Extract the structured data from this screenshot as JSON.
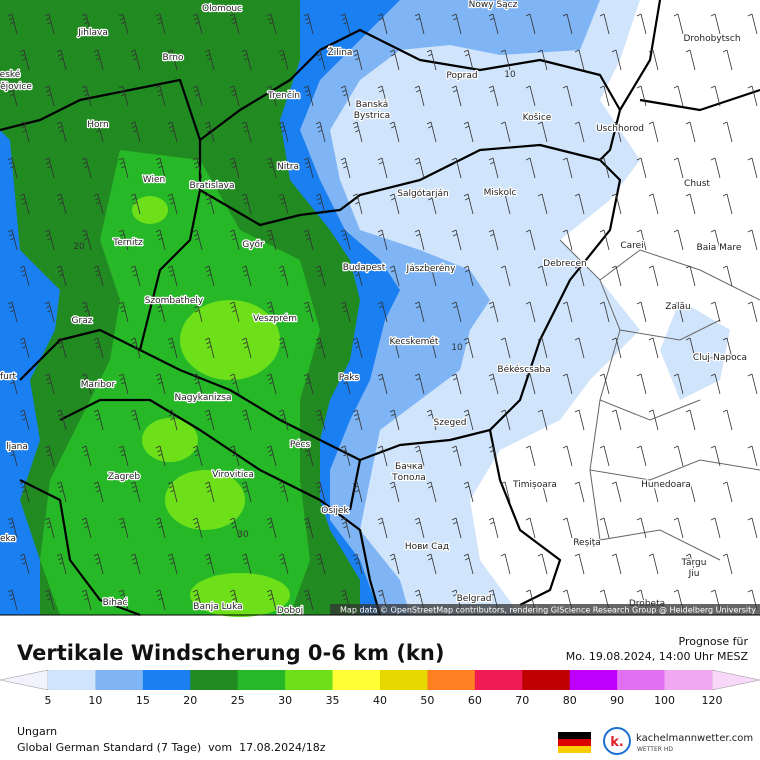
{
  "header": {
    "title": "Vertikale Windscherung 0-6 km (kn)",
    "forecast_label": "Prognose für",
    "forecast_time": "Mo. 19.08.2024, 14:00 Uhr MESZ"
  },
  "legend": {
    "ticks": [
      5,
      10,
      15,
      20,
      25,
      30,
      35,
      40,
      50,
      60,
      70,
      80,
      90,
      100,
      120
    ],
    "colors": [
      "#d0e4fb",
      "#7fb5f5",
      "#1a7ff0",
      "#218a21",
      "#27b827",
      "#6de01a",
      "#ffff33",
      "#e6d800",
      "#ff8020",
      "#f01a55",
      "#c00000",
      "#c000ff",
      "#e070f0",
      "#f0a8f0"
    ],
    "below_color": "#f2f2ff",
    "above_color": "#f8d8f8"
  },
  "map": {
    "cities": [
      "Olomouc",
      "Nowy Sącz",
      "Jihlava",
      "Brno",
      "Žilina",
      "Poprad",
      "Drohobytsch",
      "eské",
      "ějovice",
      "Trenčín",
      "Banská",
      "Bystrica",
      "Košice",
      "Uschhorod",
      "Horn",
      "Nitra",
      "Wien",
      "Bratislava",
      "Chust",
      "Salgótarján",
      "Miskolc",
      "Ternitz",
      "Győr",
      "Budapest",
      "Jászberény",
      "Debrecen",
      "Carei",
      "Baia Mare",
      "Szombathely",
      "Graz",
      "Veszprém",
      "Zalău",
      "Kecskemét",
      "Cluj-Napoca",
      "furt",
      "Maribor",
      "Paks",
      "Békéscsaba",
      "Nagykanizsa",
      "Szeged",
      "ljana",
      "Pécs",
      "Бачка",
      "Топола",
      "Zagreb",
      "Virovitica",
      "Timișoara",
      "Hunedoara",
      "Osijek",
      "eka",
      "Нови Сад",
      "Reșița",
      "Târgu",
      "Jiu",
      "Bihać",
      "Banja Luka",
      "Doboj",
      "Belgrad",
      "Drobeta"
    ],
    "contour_labels": [
      "10",
      "10",
      "20",
      "30"
    ],
    "attribution": "Map data © OpenStreetMap contributors, rendering GIScience Research Group @ Heidelberg University"
  },
  "footer": {
    "region": "Ungarn",
    "model": "Global German Standard (7 Tage)  vom  17.08.2024/18z",
    "logo": "k.",
    "site": "kachelmannwetter.com",
    "site_tagline": "WETTER HD"
  }
}
